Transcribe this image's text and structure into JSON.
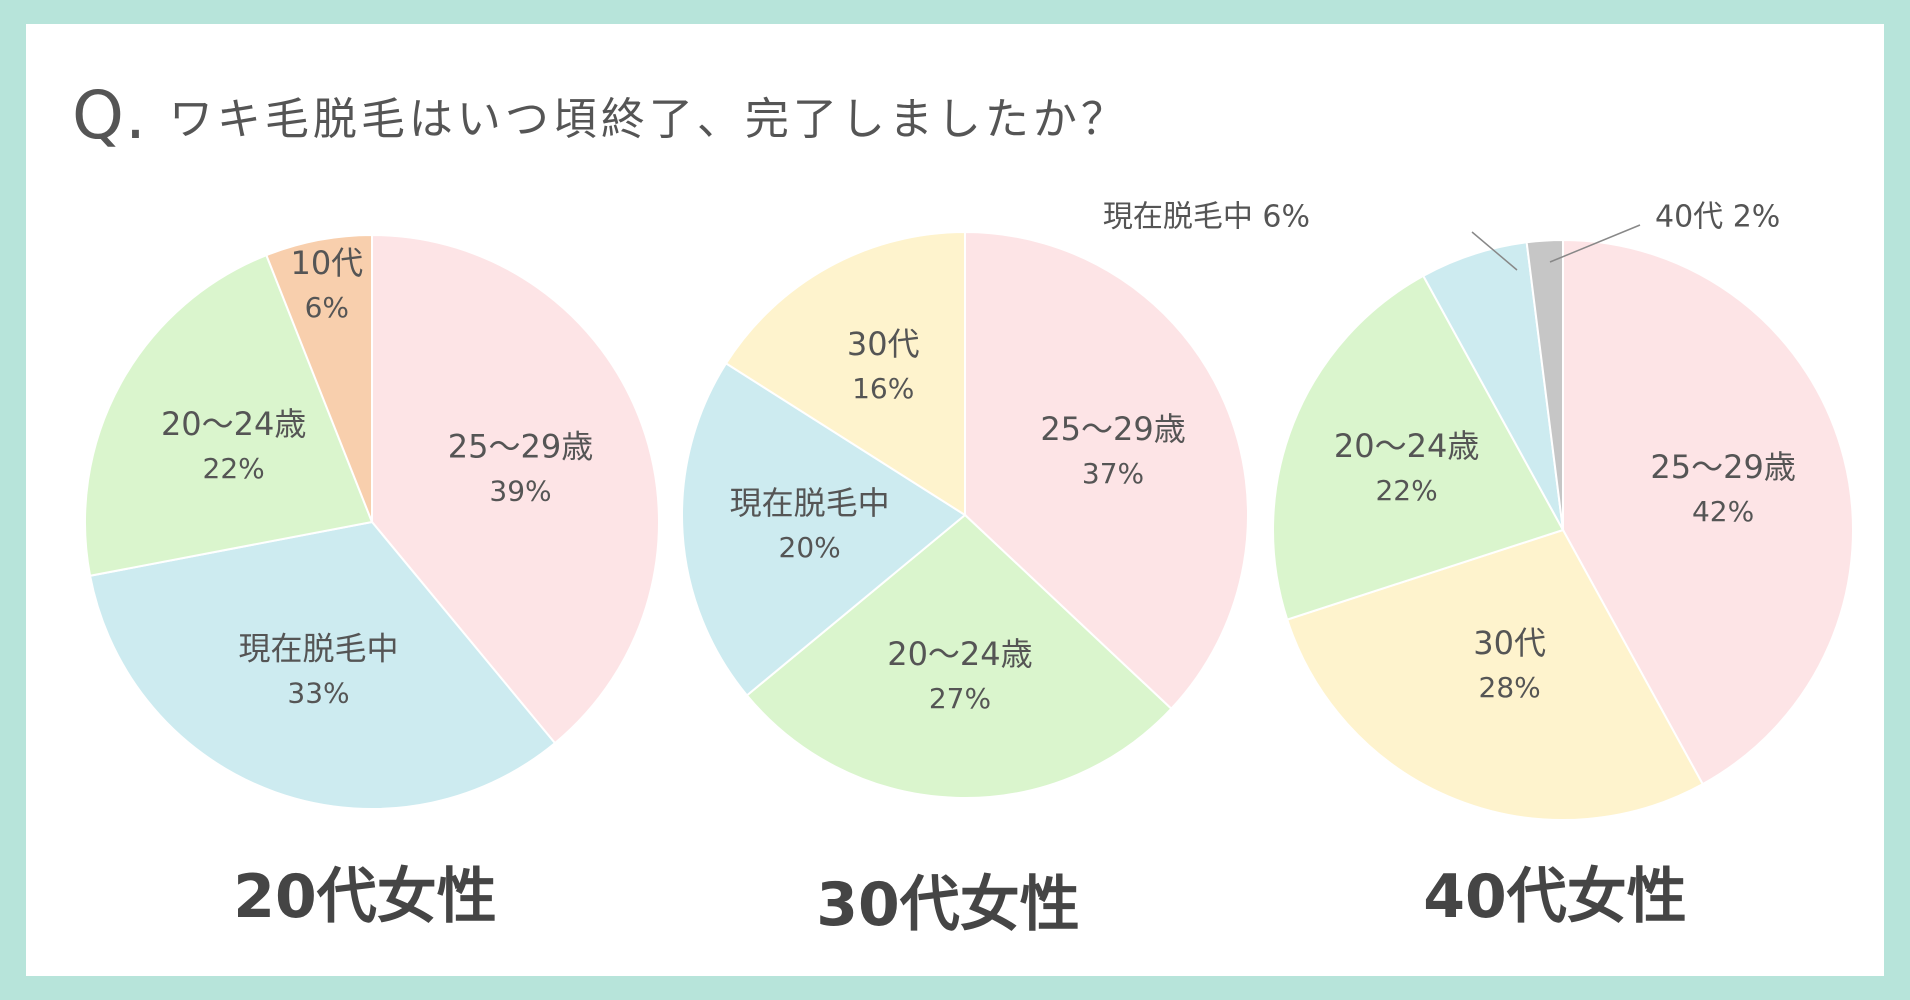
{
  "title": {
    "q": "Q.",
    "text": "ワキ毛脱毛はいつ頃終了、完了しましたか？"
  },
  "chart_data": [
    {
      "type": "pie",
      "title": "20代女性",
      "slices": [
        {
          "label": "25〜29歳",
          "value": 39,
          "color": "#fde4e6"
        },
        {
          "label": "現在脱毛中",
          "value": 33,
          "color": "#cdebf0"
        },
        {
          "label": "20〜24歳",
          "value": 22,
          "color": "#daf5cd"
        },
        {
          "label": "10代",
          "value": 6,
          "color": "#f8cfad"
        }
      ],
      "start": "top",
      "direction": "clockwise"
    },
    {
      "type": "pie",
      "title": "30代女性",
      "slices": [
        {
          "label": "25〜29歳",
          "value": 37,
          "color": "#fde4e6"
        },
        {
          "label": "20〜24歳",
          "value": 27,
          "color": "#daf5cd"
        },
        {
          "label": "現在脱毛中",
          "value": 20,
          "color": "#cdebf0"
        },
        {
          "label": "30代",
          "value": 16,
          "color": "#fef3cd"
        }
      ],
      "start": "top",
      "direction": "clockwise"
    },
    {
      "type": "pie",
      "title": "40代女性",
      "slices": [
        {
          "label": "25〜29歳",
          "value": 42,
          "color": "#fde4e6"
        },
        {
          "label": "30代",
          "value": 28,
          "color": "#fef3cd"
        },
        {
          "label": "20〜24歳",
          "value": 22,
          "color": "#daf5cd"
        },
        {
          "label": "現在脱毛中",
          "value": 6,
          "color": "#cdebf0"
        },
        {
          "label": "40代",
          "value": 2,
          "color": "#c6c6c6"
        }
      ],
      "start": "top",
      "direction": "clockwise"
    }
  ]
}
